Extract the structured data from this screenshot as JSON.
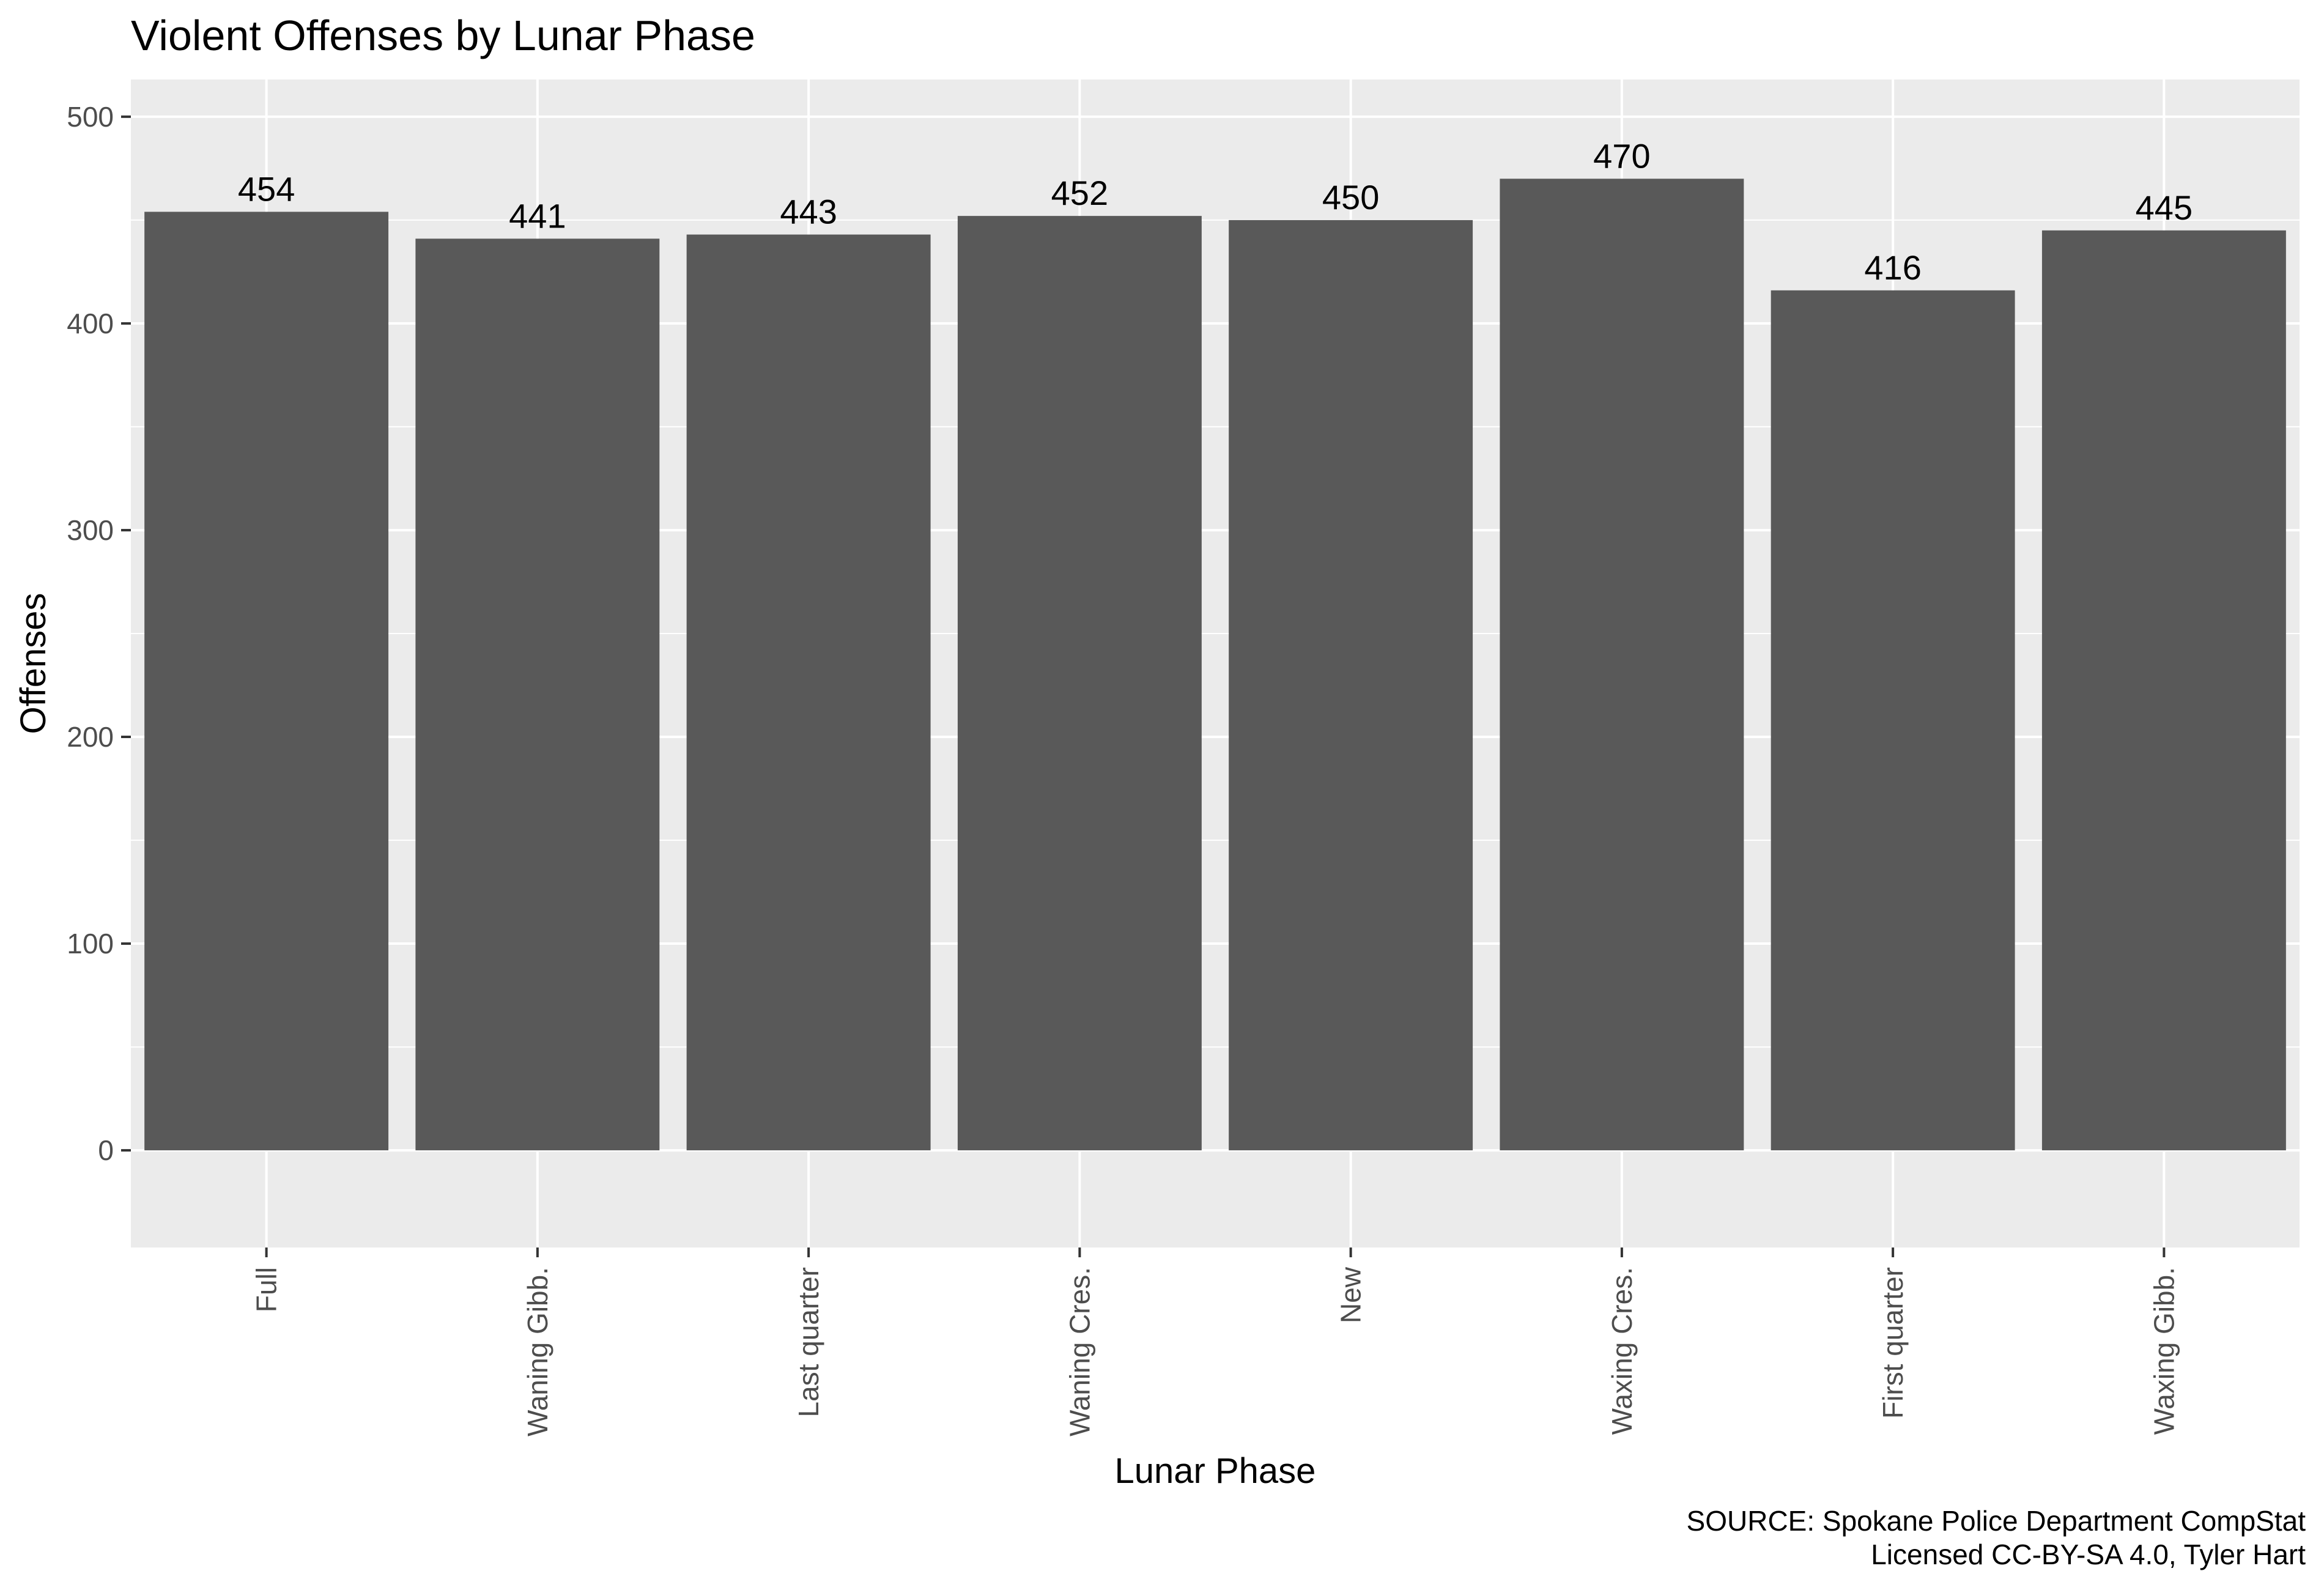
{
  "chart_data": {
    "type": "bar",
    "title": "Violent Offenses by Lunar Phase",
    "xlabel": "Lunar Phase",
    "ylabel": "Offenses",
    "categories": [
      "Full",
      "Waning Gibb.",
      "Last quarter",
      "Waning Cres.",
      "New",
      "Waxing Cres.",
      "First quarter",
      "Waxing Gibb."
    ],
    "values": [
      454,
      441,
      443,
      452,
      450,
      470,
      416,
      445
    ],
    "yticks": [
      0,
      100,
      200,
      300,
      400,
      500
    ],
    "ylim": [
      -47,
      518
    ],
    "grid": true,
    "legend": "none",
    "colors": {
      "bar": "#595959",
      "panel": "#EBEBEB",
      "grid": "#FFFFFF",
      "tick_text": "#4D4D4D"
    }
  },
  "caption": {
    "line1": "SOURCE: Spokane Police Department CompStat",
    "line2": "Licensed CC-BY-SA 4.0, Tyler Hart"
  }
}
